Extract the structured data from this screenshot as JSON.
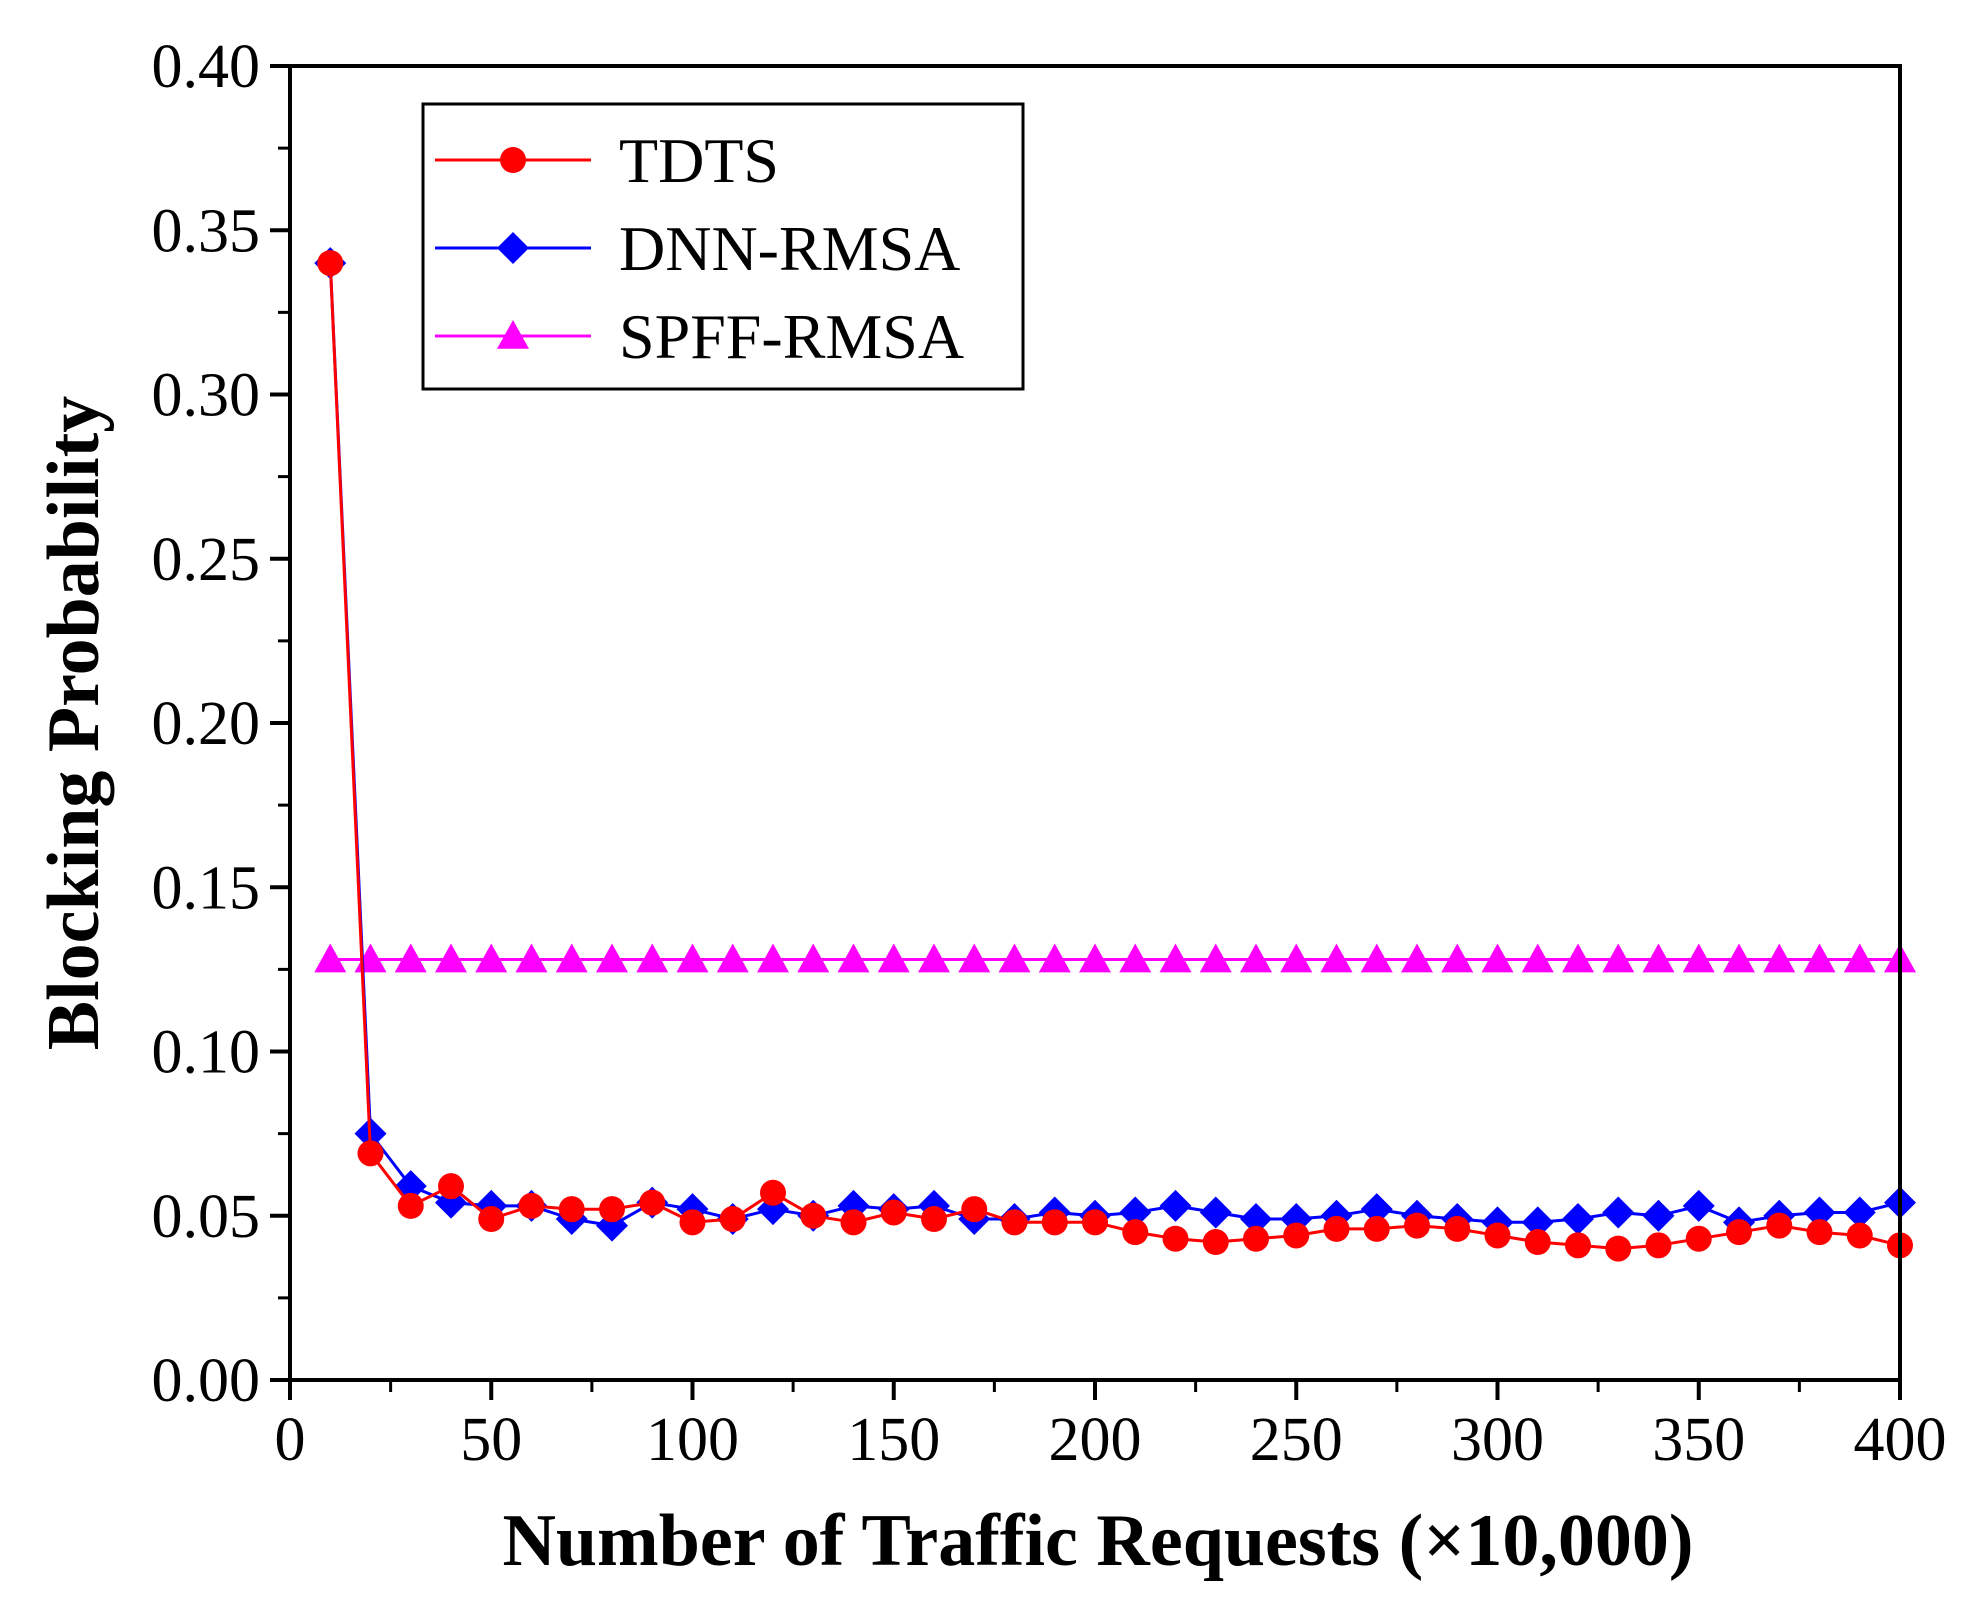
{
  "chart_data": {
    "type": "line",
    "title": "",
    "xlabel": "Number of Traffic Requests (×10,000)",
    "ylabel": "Blocking Probability",
    "xlim": [
      0,
      400
    ],
    "ylim": [
      0,
      0.4
    ],
    "xticks": [
      0,
      50,
      100,
      150,
      200,
      250,
      300,
      350,
      400
    ],
    "xtick_labels": [
      "0",
      "50",
      "100",
      "150",
      "200",
      "250",
      "300",
      "350",
      "400"
    ],
    "yticks": [
      0,
      0.05,
      0.1,
      0.15,
      0.2,
      0.25,
      0.3,
      0.35,
      0.4
    ],
    "ytick_labels": [
      "0.00",
      "0.05",
      "0.10",
      "0.15",
      "0.20",
      "0.25",
      "0.30",
      "0.35",
      "0.40"
    ],
    "grid": false,
    "legend_position": "top-left",
    "x": [
      10,
      20,
      30,
      40,
      50,
      60,
      70,
      80,
      90,
      100,
      110,
      120,
      130,
      140,
      150,
      160,
      170,
      180,
      190,
      200,
      210,
      220,
      230,
      240,
      250,
      260,
      270,
      280,
      290,
      300,
      310,
      320,
      330,
      340,
      350,
      360,
      370,
      380,
      390,
      400
    ],
    "series": [
      {
        "name": "TDTS",
        "color": "#ff0000",
        "marker": "circle",
        "values": [
          0.34,
          0.069,
          0.053,
          0.059,
          0.049,
          0.053,
          0.052,
          0.052,
          0.054,
          0.048,
          0.049,
          0.057,
          0.05,
          0.048,
          0.051,
          0.049,
          0.052,
          0.048,
          0.048,
          0.048,
          0.045,
          0.043,
          0.042,
          0.043,
          0.044,
          0.046,
          0.046,
          0.047,
          0.046,
          0.044,
          0.042,
          0.041,
          0.04,
          0.041,
          0.043,
          0.045,
          0.047,
          0.045,
          0.044,
          0.041
        ]
      },
      {
        "name": "DNN-RMSA",
        "color": "#0000ff",
        "marker": "diamond",
        "values": [
          0.34,
          0.075,
          0.059,
          0.054,
          0.053,
          0.053,
          0.049,
          0.047,
          0.054,
          0.052,
          0.049,
          0.052,
          0.05,
          0.053,
          0.052,
          0.053,
          0.049,
          0.049,
          0.051,
          0.05,
          0.051,
          0.053,
          0.051,
          0.049,
          0.049,
          0.05,
          0.052,
          0.05,
          0.049,
          0.048,
          0.048,
          0.049,
          0.051,
          0.05,
          0.053,
          0.048,
          0.05,
          0.051,
          0.051,
          0.054
        ]
      },
      {
        "name": "SPFF-RMSA",
        "color": "#ff00ff",
        "marker": "triangle",
        "values": [
          0.128,
          0.128,
          0.128,
          0.128,
          0.128,
          0.128,
          0.128,
          0.128,
          0.128,
          0.128,
          0.128,
          0.128,
          0.128,
          0.128,
          0.128,
          0.128,
          0.128,
          0.128,
          0.128,
          0.128,
          0.128,
          0.128,
          0.128,
          0.128,
          0.128,
          0.128,
          0.128,
          0.128,
          0.128,
          0.128,
          0.128,
          0.128,
          0.128,
          0.128,
          0.128,
          0.128,
          0.128,
          0.128,
          0.128,
          0.128
        ]
      }
    ]
  }
}
